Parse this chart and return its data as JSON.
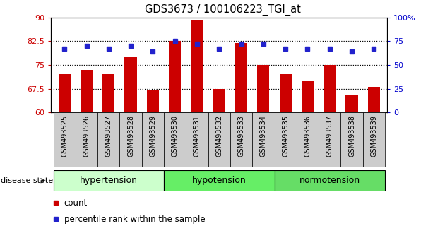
{
  "title": "GDS3673 / 100106223_TGI_at",
  "samples": [
    "GSM493525",
    "GSM493526",
    "GSM493527",
    "GSM493528",
    "GSM493529",
    "GSM493530",
    "GSM493531",
    "GSM493532",
    "GSM493533",
    "GSM493534",
    "GSM493535",
    "GSM493536",
    "GSM493537",
    "GSM493538",
    "GSM493539"
  ],
  "count_values": [
    72.0,
    73.5,
    72.0,
    77.5,
    67.0,
    82.5,
    89.0,
    67.5,
    82.0,
    75.0,
    72.0,
    70.0,
    75.0,
    65.5,
    68.0
  ],
  "percentile_values": [
    67,
    70,
    67,
    70,
    64,
    75,
    72,
    67,
    72,
    72,
    67,
    67,
    67,
    64,
    67
  ],
  "ylim_left": [
    60,
    90
  ],
  "ylim_right": [
    0,
    100
  ],
  "yticks_left": [
    60,
    67.5,
    75,
    82.5,
    90
  ],
  "ytick_labels_left": [
    "60",
    "67.5",
    "75",
    "82.5",
    "90"
  ],
  "yticks_right": [
    0,
    25,
    50,
    75,
    100
  ],
  "ytick_labels_right": [
    "0",
    "25",
    "50",
    "75",
    "100%"
  ],
  "bar_color": "#cc0000",
  "dot_color": "#2222cc",
  "grid_values": [
    67.5,
    75.0,
    82.5
  ],
  "groups": [
    {
      "label": "hypertension",
      "start": 0,
      "end": 5,
      "color": "#ccffcc"
    },
    {
      "label": "hypotension",
      "start": 5,
      "end": 10,
      "color": "#66ee66"
    },
    {
      "label": "normotension",
      "start": 10,
      "end": 15,
      "color": "#66dd66"
    }
  ],
  "disease_state_label": "disease state",
  "legend_count_label": "count",
  "legend_pct_label": "percentile rank within the sample",
  "left_axis_color": "#cc0000",
  "right_axis_color": "#0000cc",
  "xtick_bg": "#cccccc"
}
